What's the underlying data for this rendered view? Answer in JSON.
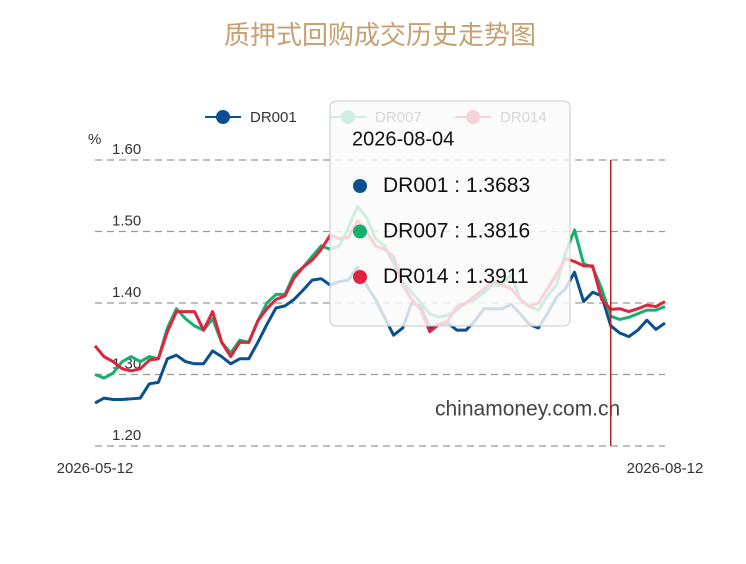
{
  "chart_data": {
    "type": "line",
    "title": "质押式回购成交历史走势图",
    "y_axis_label": "%",
    "watermark": "chinamoney.com.cn",
    "categories": [
      "2026-05-12",
      null,
      null,
      null,
      null,
      null,
      null,
      null,
      null,
      null,
      null,
      null,
      null,
      null,
      null,
      null,
      null,
      null,
      null,
      null,
      null,
      null,
      null,
      null,
      null,
      null,
      null,
      null,
      null,
      null,
      null,
      null,
      null,
      null,
      null,
      null,
      null,
      null,
      null,
      null,
      null,
      null,
      null,
      null,
      null,
      null,
      null,
      null,
      null,
      null,
      null,
      null,
      null,
      null,
      null,
      null,
      null,
      "2026-08-04",
      null,
      null,
      null,
      null,
      null,
      "2026-08-12"
    ],
    "series": [
      {
        "name": "DR001",
        "color": "#0b4f91",
        "values": [
          1.26,
          1.267,
          1.265,
          1.265,
          1.266,
          1.267,
          1.287,
          1.289,
          1.322,
          1.327,
          1.318,
          1.315,
          1.315,
          1.333,
          1.325,
          1.315,
          1.322,
          1.322,
          1.345,
          1.37,
          1.393,
          1.396,
          1.405,
          1.418,
          1.432,
          1.434,
          1.425,
          1.43,
          1.432,
          1.45,
          1.425,
          1.405,
          1.38,
          1.355,
          1.365,
          1.4,
          1.395,
          1.365,
          1.37,
          1.372,
          1.362,
          1.362,
          1.375,
          1.392,
          1.392,
          1.392,
          1.398,
          1.385,
          1.37,
          1.365,
          1.385,
          1.408,
          1.42,
          1.443,
          1.402,
          1.415,
          1.41,
          1.3683,
          1.358,
          1.353,
          1.362,
          1.376,
          1.363,
          1.372
        ]
      },
      {
        "name": "DR007",
        "color": "#15b06e",
        "values": [
          1.3,
          1.295,
          1.302,
          1.318,
          1.325,
          1.318,
          1.325,
          1.322,
          1.365,
          1.392,
          1.378,
          1.368,
          1.362,
          1.378,
          1.345,
          1.33,
          1.348,
          1.345,
          1.375,
          1.4,
          1.412,
          1.412,
          1.44,
          1.45,
          1.465,
          1.48,
          1.475,
          1.48,
          1.505,
          1.535,
          1.52,
          1.49,
          1.48,
          1.455,
          1.43,
          1.415,
          1.4,
          1.385,
          1.38,
          1.383,
          1.39,
          1.4,
          1.405,
          1.415,
          1.425,
          1.425,
          1.44,
          1.405,
          1.395,
          1.39,
          1.41,
          1.425,
          1.47,
          1.502,
          1.455,
          1.45,
          1.42,
          1.3816,
          1.377,
          1.38,
          1.385,
          1.39,
          1.39,
          1.395
        ]
      },
      {
        "name": "DR014",
        "color": "#e0233e",
        "values": [
          1.34,
          1.325,
          1.318,
          1.308,
          1.305,
          1.308,
          1.32,
          1.322,
          1.36,
          1.388,
          1.388,
          1.388,
          1.362,
          1.388,
          1.345,
          1.325,
          1.345,
          1.345,
          1.375,
          1.392,
          1.405,
          1.41,
          1.435,
          1.45,
          1.46,
          1.475,
          1.495,
          1.49,
          1.492,
          1.515,
          1.5,
          1.48,
          1.475,
          1.465,
          1.425,
          1.405,
          1.39,
          1.36,
          1.37,
          1.375,
          1.395,
          1.4,
          1.41,
          1.42,
          1.43,
          1.425,
          1.42,
          1.405,
          1.395,
          1.4,
          1.42,
          1.44,
          1.462,
          1.458,
          1.452,
          1.452,
          1.405,
          1.3911,
          1.392,
          1.388,
          1.392,
          1.397,
          1.395,
          1.402
        ]
      }
    ],
    "ylim": [
      1.2,
      1.6
    ],
    "yticks": [
      {
        "value": 1.2,
        "label": "1.20"
      },
      {
        "value": 1.3,
        "label": "1.30"
      },
      {
        "value": 1.4,
        "label": "1.40"
      },
      {
        "value": 1.5,
        "label": "1.50"
      },
      {
        "value": 1.6,
        "label": "1.60"
      }
    ],
    "grid": true,
    "legend": "top",
    "tooltip": {
      "separator": " : "
    }
  }
}
